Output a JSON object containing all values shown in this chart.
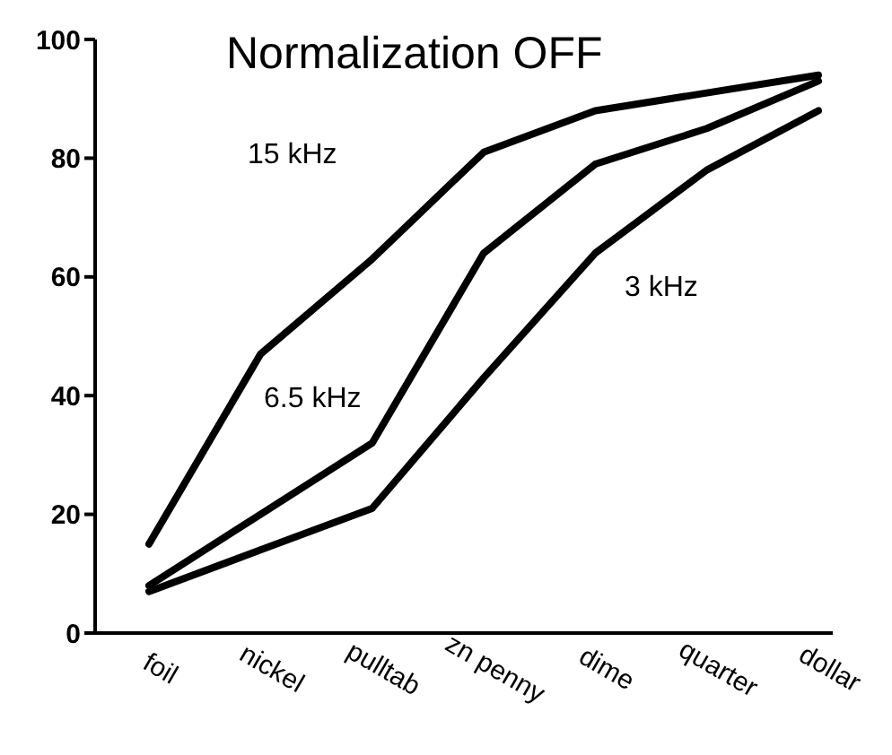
{
  "chart_data": {
    "type": "line",
    "title": "Normalization OFF",
    "categories": [
      "foil",
      "nickel",
      "pulltab",
      "zn penny",
      "dime",
      "quarter",
      "dollar"
    ],
    "series": [
      {
        "color": "#000000",
        "values": [
          15,
          47,
          63,
          81,
          88,
          91,
          94
        ]
      },
      {
        "color": "#000000",
        "values": [
          8,
          20,
          32,
          64,
          79,
          85,
          93
        ]
      },
      {
        "color": "#000000",
        "values": [
          7,
          14,
          21,
          43,
          64,
          78,
          88
        ]
      }
    ],
    "annotations": [
      "15 kHz",
      "6.5 kHz",
      "3 kHz"
    ],
    "ylim": [
      0,
      100
    ],
    "yticks": [
      0,
      20,
      40,
      60,
      80,
      100
    ],
    "grid": false,
    "legend": false,
    "marker": "none",
    "line_style": "solid"
  }
}
